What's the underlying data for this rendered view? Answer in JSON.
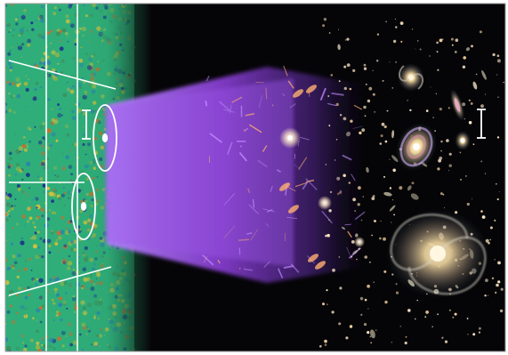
{
  "colors": {
    "background": "#ffffff",
    "space": "#050507",
    "cmb_field": "#2fae7a",
    "cmb_hot": "#d9c23a",
    "cmb_warm": "#a0b640",
    "cmb_cold": "#1a2f8a",
    "cmb_glow": "#3f8f5a",
    "beam_core": "#8a3fd6",
    "beam_light": "#c08cff",
    "filaments": "#ffb070",
    "markers": "#ffffff",
    "stars": "#ffe9c9"
  },
  "figure": {
    "panels": [
      "cmb-map",
      "light-beam",
      "galaxy-field"
    ],
    "ellipse_count": 2,
    "scale_bar_count": 2,
    "spiral_galaxy_count": 4
  }
}
